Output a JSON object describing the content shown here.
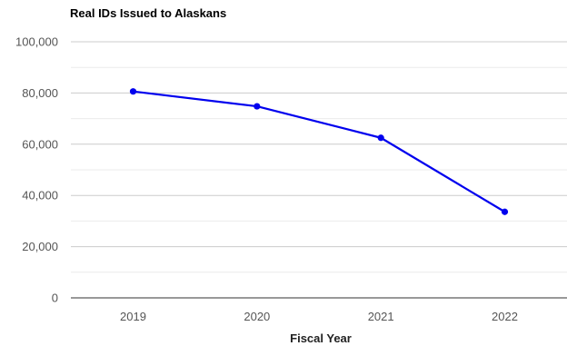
{
  "title": "Real IDs Issued to Alaskans",
  "colors": {
    "line": "#0000ee",
    "grid_major": "#cccccc",
    "grid_minor": "#ebebeb",
    "axis": "#333333"
  },
  "chart_data": {
    "type": "line",
    "title": "Real IDs Issued to Alaskans",
    "xlabel": "Fiscal Year",
    "ylabel": "",
    "categories": [
      "2019",
      "2020",
      "2021",
      "2022"
    ],
    "series": [
      {
        "values": [
          80600,
          74800,
          62500,
          33600
        ]
      }
    ],
    "ylim": [
      0,
      100000
    ],
    "yticks": [
      0,
      20000,
      40000,
      60000,
      80000,
      100000
    ],
    "ytick_labels": [
      "0",
      "20,000",
      "40,000",
      "60,000",
      "80,000",
      "100,000"
    ],
    "grid": true,
    "minor_grid": true,
    "legend": "none",
    "markers": true
  }
}
